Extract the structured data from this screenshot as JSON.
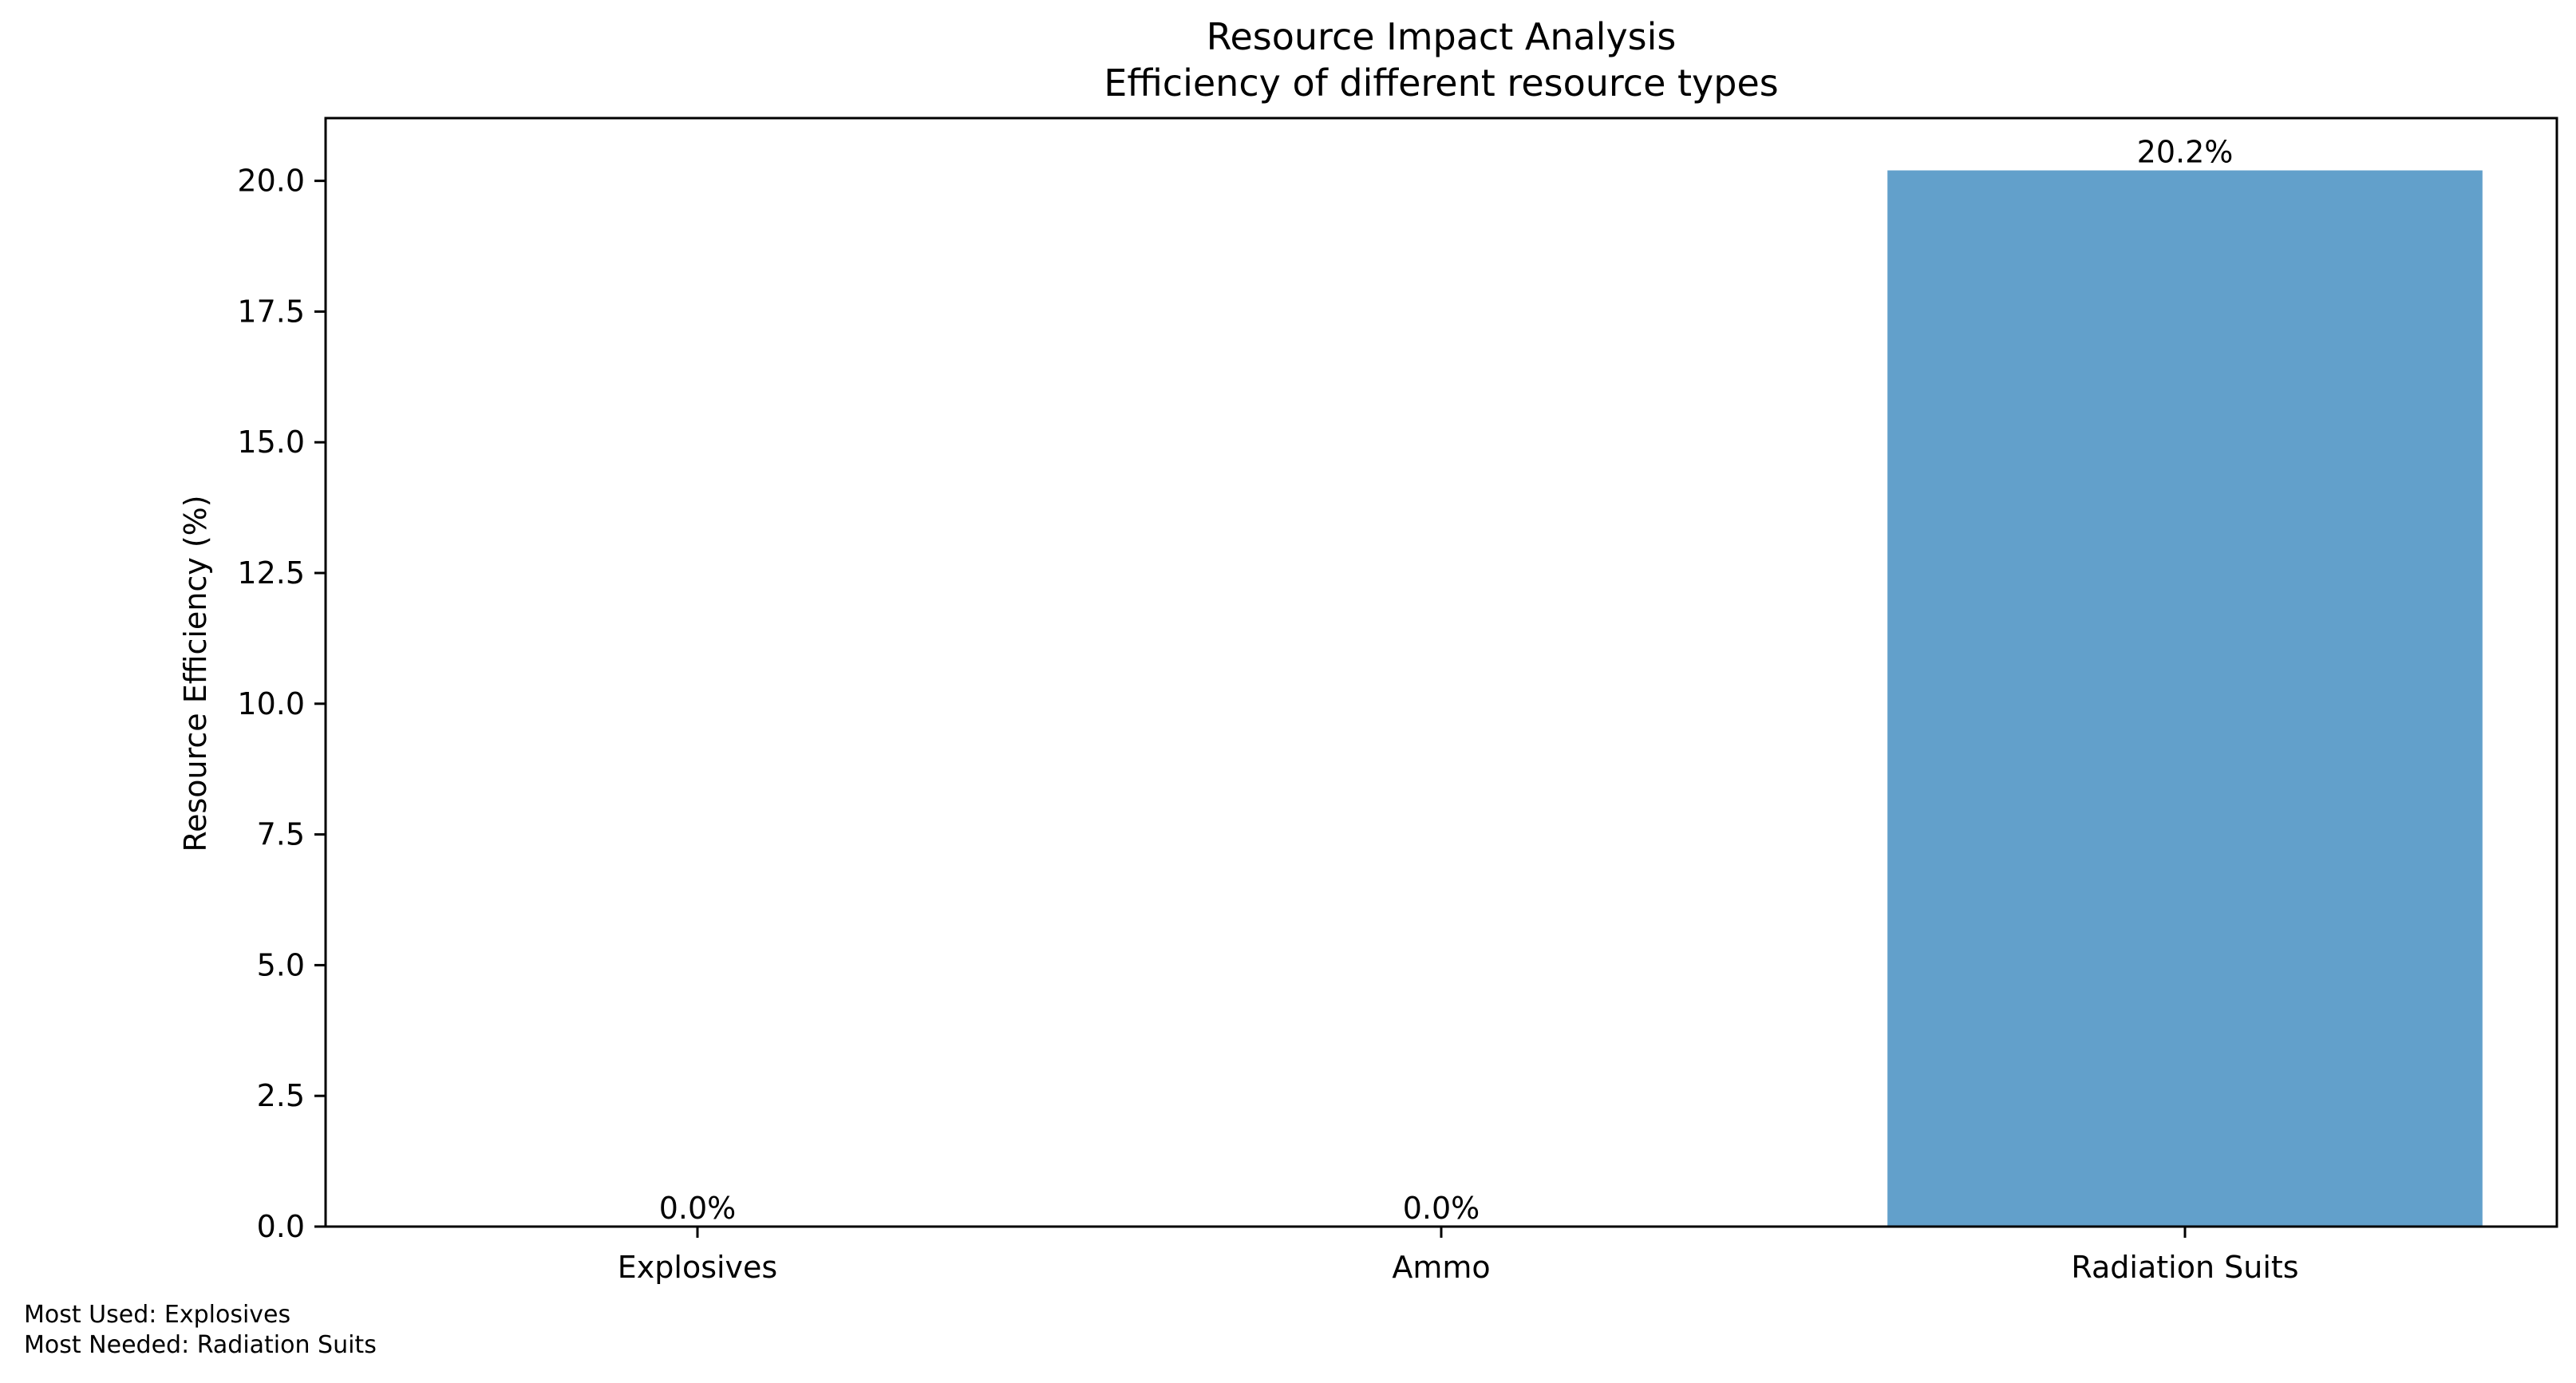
{
  "chart_data": {
    "type": "bar",
    "title": "Resource Impact Analysis",
    "subtitle": "Efficiency of different resource types",
    "xlabel": "",
    "ylabel": "Resource Efficiency (%)",
    "categories": [
      "Explosives",
      "Ammo",
      "Radiation Suits"
    ],
    "values": [
      0.0,
      0.0,
      20.2
    ],
    "value_labels": [
      "0.0%",
      "0.0%",
      "20.2%"
    ],
    "ylim": [
      0,
      21.2
    ],
    "yticks": [
      0.0,
      2.5,
      5.0,
      7.5,
      10.0,
      12.5,
      15.0,
      17.5,
      20.0
    ],
    "ytick_labels": [
      "0.0",
      "2.5",
      "5.0",
      "7.5",
      "10.0",
      "12.5",
      "15.0",
      "17.5",
      "20.0"
    ],
    "bar_color": "#62a0cb",
    "grid": false,
    "legend": "none"
  },
  "footnotes": {
    "most_used": "Most Used: Explosives",
    "most_needed": "Most Needed: Radiation Suits"
  }
}
